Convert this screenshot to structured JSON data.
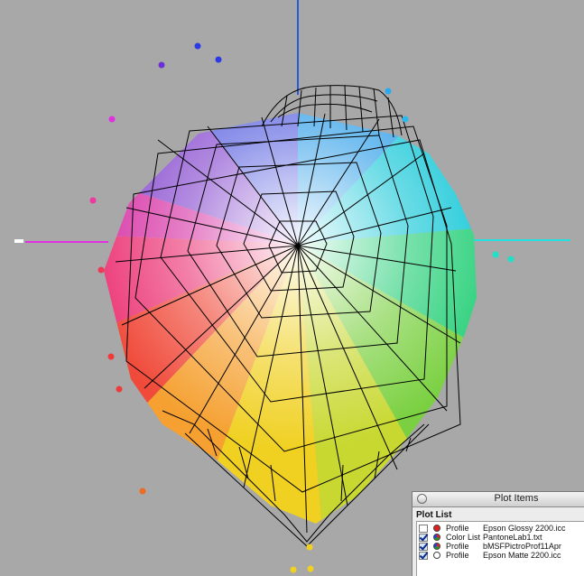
{
  "plot_items": {
    "window_title": "Plot Items",
    "list_label": "Plot List",
    "rows": [
      {
        "checked": false,
        "kind": "Profile",
        "name": "Epson Glossy 2200.icc",
        "symbol": "red-dot"
      },
      {
        "checked": true,
        "kind": "Color List",
        "name": "PantoneLab1.txt",
        "symbol": "multicolor-dot"
      },
      {
        "checked": true,
        "kind": "Profile",
        "name": "bMSFPictroProf11Apr",
        "symbol": "multicolor-dot"
      },
      {
        "checked": true,
        "kind": "Profile",
        "name": "Epson Matte 2200.icc",
        "symbol": "hollow-dot"
      }
    ]
  },
  "colors": {
    "background": "#a8a8a8",
    "axis_blue": "#2a5bd7",
    "axis_magenta": "#e030e0",
    "axis_cyan": "#20e0e0",
    "wireframe": "#000000"
  }
}
